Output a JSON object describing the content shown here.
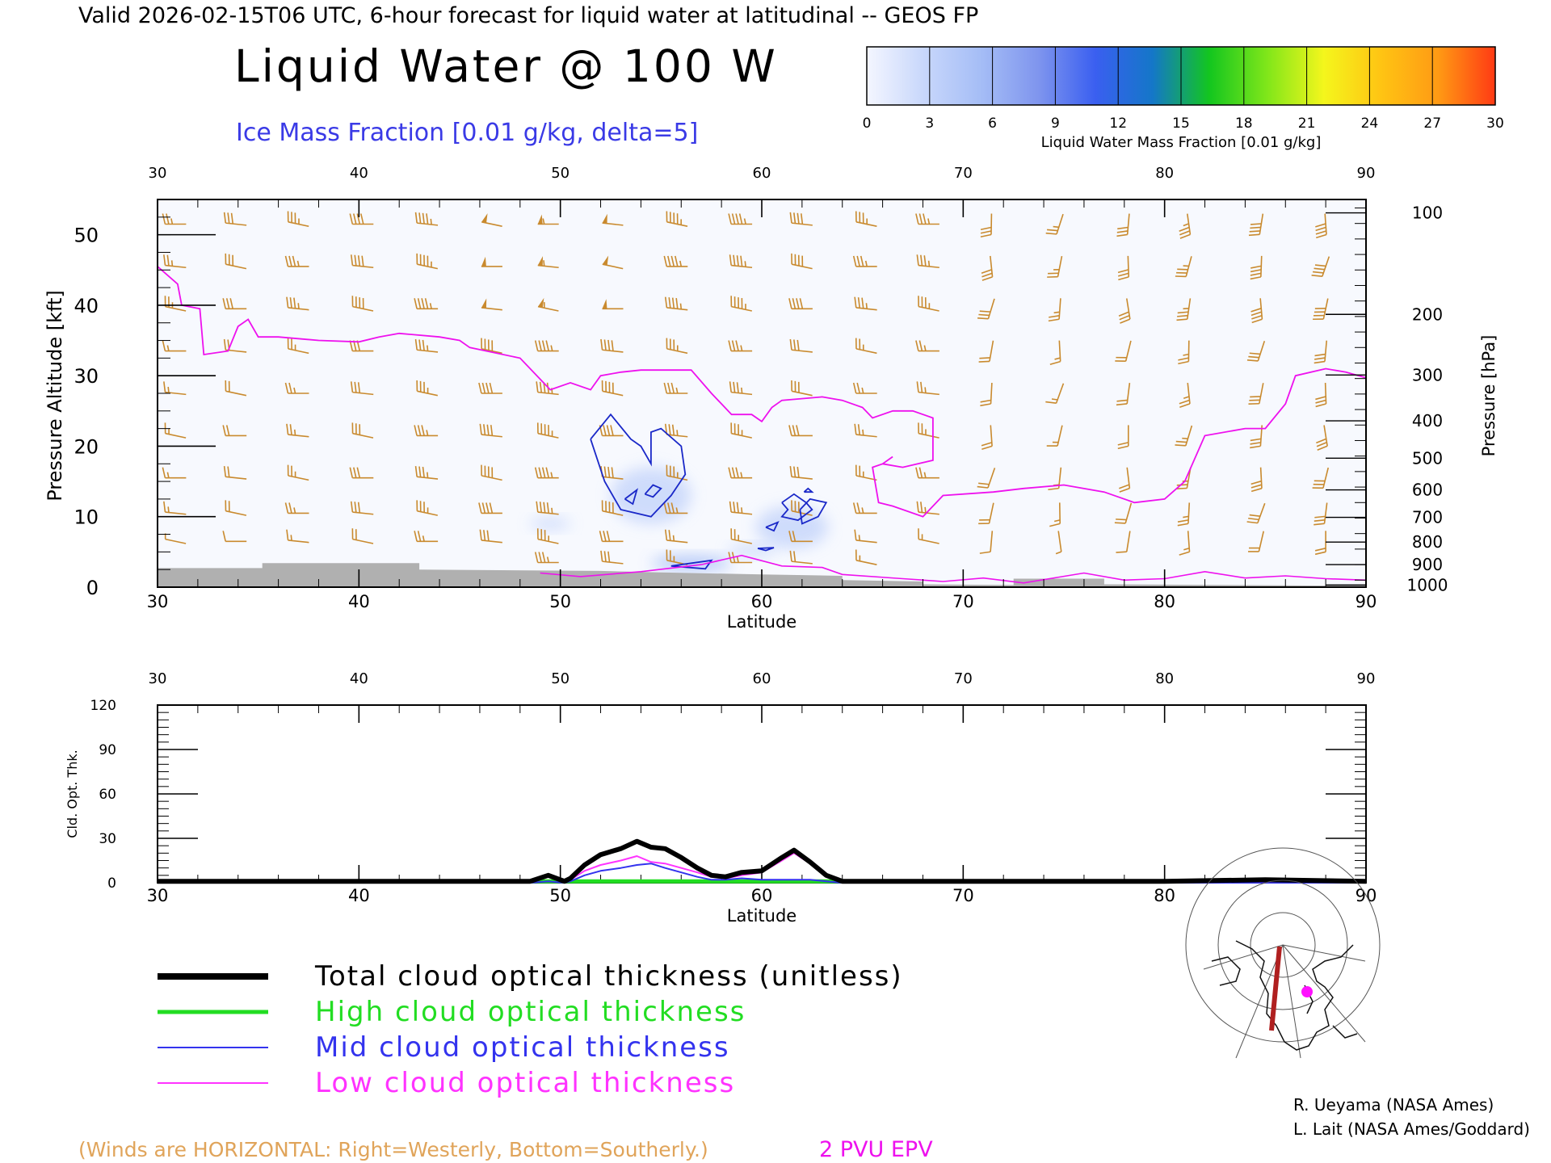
{
  "header": {
    "valid_line": "Valid 2026-02-15T06 UTC, 6-hour forecast for liquid water at latitudinal -- GEOS FP",
    "main_title": "Liquid Water @ 100 W",
    "subtitle": "Ice Mass Fraction [0.01 g/kg, delta=5]"
  },
  "colorbar": {
    "ticks": [
      "0",
      "3",
      "6",
      "9",
      "12",
      "15",
      "18",
      "21",
      "24",
      "27",
      "30"
    ],
    "label": "Liquid Water Mass Fraction [0.01 g/kg]",
    "colors": [
      "#f4f6ff",
      "#c8d7fb",
      "#a5bdf6",
      "#7f95ee",
      "#3a5ff0",
      "#1477c8",
      "#13c61f",
      "#7fe61a",
      "#f4f61c",
      "#ffc413",
      "#ff9a14",
      "#ff3a14"
    ]
  },
  "credits": {
    "line1": "R. Ueyama (NASA Ames)",
    "line2": "L. Lait (NASA Ames/Goddard)"
  },
  "footer": {
    "winds_note": "(Winds are HORIZONTAL: Right=Westerly, Bottom=Southerly.)",
    "epv_label": "2 PVU EPV"
  },
  "legend": {
    "items": [
      {
        "label": "Total cloud optical thickness (unitless)",
        "color": "#000000"
      },
      {
        "label": "High cloud optical thickness",
        "color": "#22dd22"
      },
      {
        "label": "Mid cloud optical thickness",
        "color": "#3333ee"
      },
      {
        "label": "Low cloud optical thickness",
        "color": "#ff33ff"
      }
    ]
  },
  "colors": {
    "wind_barb": "#c98a2e",
    "epv": "#ee11ee",
    "ice_contour": "#1a28c8",
    "terrain": "#b0b0b0",
    "field_bg": "#f7f9fe"
  },
  "chart_data": [
    {
      "type": "heatmap",
      "title": "Liquid Water @ 100 W",
      "xlabel": "Latitude",
      "ylabel": "Pressure Altitude [kft]",
      "y2label": "Pressure [hPa]",
      "xlim": [
        30,
        90
      ],
      "ylim": [
        0,
        55
      ],
      "x_ticks": [
        "30",
        "40",
        "50",
        "60",
        "70",
        "80",
        "90"
      ],
      "y_ticks": [
        "0",
        "10",
        "20",
        "30",
        "40",
        "50"
      ],
      "pressure_ticks": [
        {
          "label": "100",
          "kft": 53.1
        },
        {
          "label": "200",
          "kft": 38.7
        },
        {
          "label": "300",
          "kft": 30.1
        },
        {
          "label": "400",
          "kft": 23.6
        },
        {
          "label": "500",
          "kft": 18.3
        },
        {
          "label": "600",
          "kft": 13.8
        },
        {
          "label": "700",
          "kft": 9.9
        },
        {
          "label": "800",
          "kft": 6.4
        },
        {
          "label": "900",
          "kft": 3.2
        },
        {
          "label": "1000",
          "kft": 0.3
        }
      ],
      "liquid_water_blobs": [
        {
          "lat": 54.5,
          "kft": 13.0,
          "rlat": 2.0,
          "rkft": 4.0,
          "value": 4
        },
        {
          "lat": 49.5,
          "kft": 9.0,
          "rlat": 1.0,
          "rkft": 0.8,
          "value": 2
        },
        {
          "lat": 56.5,
          "kft": 3.4,
          "rlat": 2.0,
          "rkft": 1.0,
          "value": 7
        },
        {
          "lat": 61.5,
          "kft": 8.5,
          "rlat": 1.8,
          "rkft": 3.0,
          "value": 3
        },
        {
          "lat": 59.5,
          "kft": 5.2,
          "rlat": 1.2,
          "rkft": 0.8,
          "value": 3
        }
      ],
      "ice_contours": [
        [
          [
            51.5,
            21
          ],
          [
            52.5,
            24.5
          ],
          [
            53.5,
            21
          ],
          [
            54,
            20
          ],
          [
            54.5,
            17.5
          ],
          [
            54.5,
            22
          ],
          [
            55,
            22.5
          ],
          [
            56,
            20
          ],
          [
            56.2,
            16
          ],
          [
            55.5,
            13
          ],
          [
            54.5,
            10
          ],
          [
            53,
            11
          ],
          [
            52.2,
            15
          ],
          [
            51.5,
            21
          ]
        ],
        [
          [
            53.2,
            12.5
          ],
          [
            53.8,
            13.8
          ],
          [
            53.6,
            11.8
          ],
          [
            53.2,
            12.5
          ]
        ],
        [
          [
            54.2,
            13.2
          ],
          [
            54.6,
            14.5
          ],
          [
            55,
            14
          ],
          [
            54.6,
            12.8
          ],
          [
            54.2,
            13.2
          ]
        ],
        [
          [
            61,
            12
          ],
          [
            61.6,
            13.2
          ],
          [
            62.2,
            12
          ],
          [
            62.5,
            11
          ],
          [
            61.8,
            9.5
          ],
          [
            61,
            10
          ],
          [
            61.3,
            11
          ],
          [
            61,
            12
          ]
        ],
        [
          [
            61.9,
            11
          ],
          [
            62.4,
            12.5
          ],
          [
            63.2,
            12
          ],
          [
            62.8,
            10
          ],
          [
            62,
            9
          ],
          [
            61.9,
            11
          ]
        ],
        [
          [
            60.2,
            8.5
          ],
          [
            60.8,
            9.2
          ],
          [
            60.6,
            8
          ],
          [
            60.2,
            8.5
          ]
        ],
        [
          [
            62.1,
            13.5
          ],
          [
            62.3,
            14
          ],
          [
            62.5,
            13.5
          ],
          [
            62.1,
            13.5
          ]
        ],
        [
          [
            59.8,
            5.5
          ],
          [
            60.6,
            5.6
          ],
          [
            60.2,
            5.2
          ],
          [
            59.8,
            5.5
          ]
        ],
        [
          [
            55.5,
            3
          ],
          [
            57.5,
            3.8
          ],
          [
            57.2,
            2.6
          ],
          [
            55.5,
            3
          ]
        ]
      ],
      "epv_curve": [
        [
          30,
          45.5
        ],
        [
          31,
          43
        ],
        [
          31.2,
          40
        ],
        [
          32.1,
          39.5
        ],
        [
          32.3,
          33
        ],
        [
          33.5,
          33.5
        ],
        [
          34,
          37
        ],
        [
          34.5,
          38
        ],
        [
          35,
          35.5
        ],
        [
          36,
          35.5
        ],
        [
          38,
          35
        ],
        [
          40,
          34.8
        ],
        [
          41,
          35.5
        ],
        [
          42,
          36
        ],
        [
          44,
          35.5
        ],
        [
          45,
          35
        ],
        [
          45.5,
          34
        ],
        [
          48,
          32.5
        ],
        [
          49,
          29.5
        ],
        [
          49.5,
          28
        ],
        [
          50.5,
          29
        ],
        [
          51.5,
          28
        ],
        [
          52,
          30
        ],
        [
          53,
          30.5
        ],
        [
          54,
          30.8
        ],
        [
          56.5,
          30.8
        ],
        [
          57.5,
          27.5
        ],
        [
          58.5,
          24.5
        ],
        [
          59.5,
          24.5
        ],
        [
          60,
          23.5
        ],
        [
          60.5,
          25.5
        ],
        [
          61,
          26.5
        ],
        [
          63,
          27
        ],
        [
          64,
          26.5
        ],
        [
          65,
          25.5
        ],
        [
          65.5,
          24
        ],
        [
          66.5,
          25
        ],
        [
          67.5,
          25
        ],
        [
          68.5,
          24
        ],
        [
          68.5,
          18
        ],
        [
          67,
          17
        ],
        [
          66,
          17.5
        ],
        [
          66.5,
          18.5
        ],
        [
          66,
          17.5
        ],
        [
          65.5,
          17
        ],
        [
          65.8,
          12
        ],
        [
          66.5,
          11.5
        ],
        [
          68,
          10
        ],
        [
          69,
          13
        ],
        [
          71.5,
          13.5
        ],
        [
          73,
          14
        ],
        [
          75,
          14.5
        ],
        [
          77,
          13.5
        ],
        [
          78.5,
          12
        ],
        [
          80,
          12.5
        ],
        [
          81,
          15
        ],
        [
          82,
          21.5
        ],
        [
          84,
          22.5
        ],
        [
          85,
          22.5
        ],
        [
          86,
          26
        ],
        [
          86.5,
          30
        ],
        [
          88,
          31
        ],
        [
          89,
          30.5
        ],
        [
          90,
          29.7
        ]
      ],
      "terrain": [
        [
          30,
          2.7
        ],
        [
          35.2,
          2.7
        ],
        [
          35.2,
          3.4
        ],
        [
          43,
          3.4
        ],
        [
          43,
          2.5
        ],
        [
          52,
          2.3
        ],
        [
          55,
          2.1
        ],
        [
          60,
          1.8
        ],
        [
          64,
          1.6
        ],
        [
          64,
          1.0
        ],
        [
          68,
          0.8
        ],
        [
          68,
          0.4
        ],
        [
          72.5,
          0.3
        ],
        [
          72.5,
          1.2
        ],
        [
          77,
          1.2
        ],
        [
          77,
          0.4
        ],
        [
          90,
          0.2
        ]
      ],
      "wind_barb_columns": [
        {
          "lat": 30.9,
          "speed": 15
        },
        {
          "lat": 33.9,
          "speed": 20
        },
        {
          "lat": 37.0,
          "speed": 25
        },
        {
          "lat": 40.2,
          "speed": 30
        },
        {
          "lat": 43.4,
          "speed": 35
        },
        {
          "lat": 46.6,
          "speed": 40
        },
        {
          "lat": 49.4,
          "speed": 45
        },
        {
          "lat": 52.6,
          "speed": 40
        },
        {
          "lat": 55.8,
          "speed": 35
        },
        {
          "lat": 59.0,
          "speed": 35
        },
        {
          "lat": 62.0,
          "speed": 30
        },
        {
          "lat": 65.2,
          "speed": 25
        },
        {
          "lat": 68.3,
          "speed": 25
        },
        {
          "lat": 71.4,
          "speed": 20
        },
        {
          "lat": 74.8,
          "speed": 15
        },
        {
          "lat": 78.2,
          "speed": 20
        },
        {
          "lat": 81.2,
          "speed": 25
        },
        {
          "lat": 84.8,
          "speed": 30
        },
        {
          "lat": 88.0,
          "speed": 30
        }
      ]
    },
    {
      "type": "line",
      "xlabel": "Latitude",
      "ylabel": "Cld. Opt. Thk.",
      "xlim": [
        30,
        90
      ],
      "ylim": [
        0,
        120
      ],
      "x_ticks": [
        "30",
        "40",
        "50",
        "60",
        "70",
        "80",
        "90"
      ],
      "y_ticks": [
        "0",
        "30",
        "60",
        "90",
        "120"
      ],
      "x": [
        30,
        40,
        48.5,
        49.4,
        50.2,
        50.5,
        51.2,
        52,
        53,
        53.8,
        54.5,
        55.2,
        56,
        56.8,
        57.5,
        58.2,
        59,
        60,
        61,
        61.6,
        62.4,
        63.2,
        64,
        66,
        70,
        80,
        85,
        90
      ],
      "series": [
        {
          "name": "Total cloud optical thickness (unitless)",
          "color": "#000000",
          "width": 6,
          "values": [
            1,
            1,
            1,
            5,
            1,
            3,
            12,
            19,
            23,
            28,
            24,
            23,
            17,
            10,
            5,
            4,
            7,
            8,
            17,
            22,
            14,
            5,
            1,
            1,
            1,
            1,
            2,
            1
          ]
        },
        {
          "name": "High cloud optical thickness",
          "color": "#22dd22",
          "width": 5,
          "values": [
            1,
            1,
            1,
            1,
            1,
            1,
            1,
            1,
            1,
            1,
            1,
            1,
            1,
            1,
            1,
            1,
            1,
            1,
            1,
            1,
            1,
            1,
            1,
            1,
            1,
            1,
            1,
            1
          ]
        },
        {
          "name": "Mid cloud optical thickness",
          "color": "#3333ee",
          "width": 2,
          "values": [
            0,
            0,
            0,
            1,
            0,
            1,
            5,
            8,
            10,
            12,
            13,
            10,
            7,
            4,
            2,
            2,
            3,
            2,
            2,
            2,
            2,
            1,
            0,
            0,
            0,
            0,
            0,
            0
          ]
        },
        {
          "name": "Low cloud optical thickness",
          "color": "#ff33ff",
          "width": 2,
          "values": [
            1,
            1,
            1,
            4,
            1,
            2,
            8,
            12,
            15,
            18,
            14,
            13,
            10,
            7,
            4,
            3,
            5,
            7,
            15,
            20,
            13,
            5,
            1,
            1,
            1,
            1,
            1,
            1
          ]
        }
      ]
    }
  ]
}
